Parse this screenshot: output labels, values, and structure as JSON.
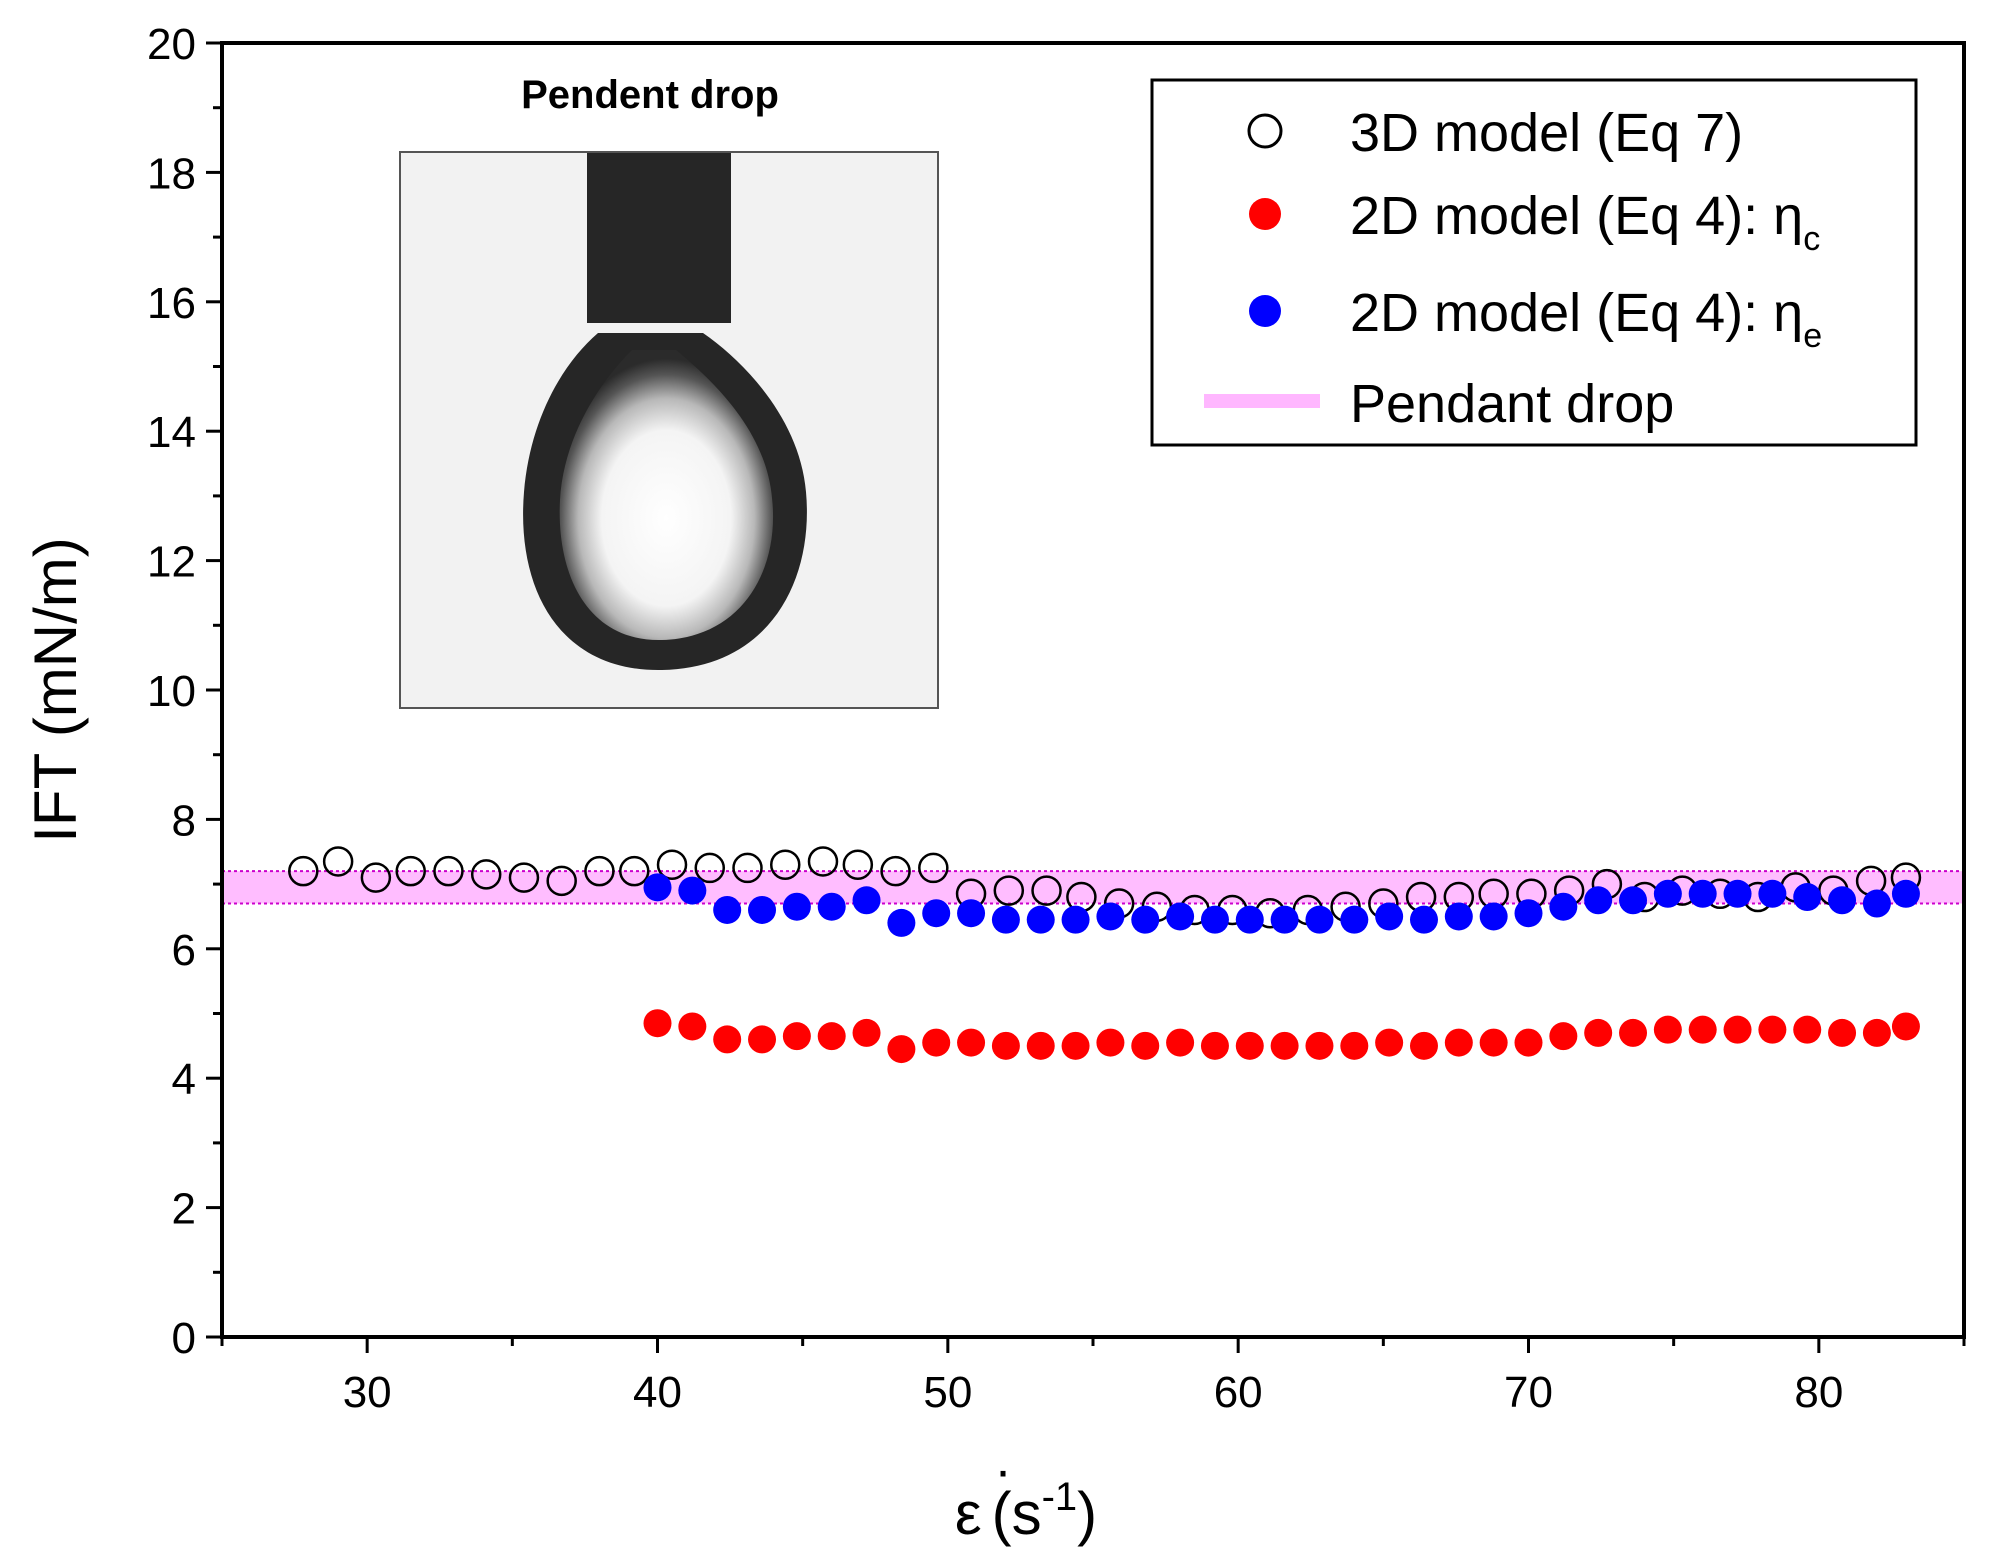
{
  "chart_data": {
    "type": "scatter",
    "title": "",
    "xlabel": "ε̇ (s⁻¹)",
    "xlabel_parts": {
      "symbol": "ε",
      "dot": "·",
      "open": "(s",
      "exp": "-1",
      "close": ")"
    },
    "ylabel": "IFT (mN/m)",
    "xlim": [
      25,
      85
    ],
    "ylim": [
      0,
      20
    ],
    "x_ticks": [
      30,
      40,
      50,
      60,
      70,
      80
    ],
    "y_ticks": [
      0,
      2,
      4,
      6,
      8,
      10,
      12,
      14,
      16,
      18,
      20
    ],
    "x_tick_labels": [
      "30",
      "40",
      "50",
      "60",
      "70",
      "80"
    ],
    "y_tick_labels": [
      "0",
      "2",
      "4",
      "6",
      "8",
      "10",
      "12",
      "14",
      "16",
      "18",
      "20"
    ],
    "grid": false,
    "legend_position": "top-right",
    "inset": {
      "title": "Pendent drop",
      "content": "photograph of a pendent drop hanging from a needle"
    },
    "band": {
      "name": "Pendant drop",
      "low": 6.7,
      "high": 7.2,
      "color": "#ff99ff"
    },
    "series": [
      {
        "name": "3D model (Eq 7)",
        "marker": "open-circle",
        "color": "#000000",
        "x": [
          27.8,
          29.0,
          30.3,
          31.5,
          32.8,
          34.1,
          35.4,
          36.7,
          38.0,
          39.2,
          40.5,
          41.8,
          43.1,
          44.4,
          45.7,
          46.9,
          48.2,
          49.5,
          50.8,
          52.1,
          53.4,
          54.6,
          55.9,
          57.2,
          58.5,
          59.8,
          61.1,
          62.4,
          63.7,
          65.0,
          66.3,
          67.6,
          68.8,
          70.1,
          71.4,
          72.7,
          74.0,
          75.3,
          76.6,
          77.9,
          79.2,
          80.5,
          81.8,
          83.0
        ],
        "y": [
          7.2,
          7.35,
          7.1,
          7.2,
          7.2,
          7.15,
          7.1,
          7.05,
          7.2,
          7.2,
          7.3,
          7.25,
          7.25,
          7.3,
          7.35,
          7.3,
          7.2,
          7.25,
          6.85,
          6.9,
          6.9,
          6.8,
          6.7,
          6.65,
          6.6,
          6.6,
          6.55,
          6.6,
          6.65,
          6.7,
          6.8,
          6.8,
          6.85,
          6.85,
          6.9,
          7.0,
          6.8,
          6.9,
          6.85,
          6.8,
          6.95,
          6.9,
          7.05,
          7.1
        ]
      },
      {
        "name": "2D model (Eq 4): ηc",
        "label_main": "2D model (Eq 4): η",
        "label_sub": "c",
        "marker": "filled-circle",
        "color": "#ff0000",
        "x": [
          40.0,
          41.2,
          42.4,
          43.6,
          44.8,
          46.0,
          47.2,
          48.4,
          49.6,
          50.8,
          52.0,
          53.2,
          54.4,
          55.6,
          56.8,
          58.0,
          59.2,
          60.4,
          61.6,
          62.8,
          64.0,
          65.2,
          66.4,
          67.6,
          68.8,
          70.0,
          71.2,
          72.4,
          73.6,
          74.8,
          76.0,
          77.2,
          78.4,
          79.6,
          80.8,
          82.0,
          83.0
        ],
        "y": [
          4.85,
          4.8,
          4.6,
          4.6,
          4.65,
          4.65,
          4.7,
          4.45,
          4.55,
          4.55,
          4.5,
          4.5,
          4.5,
          4.55,
          4.5,
          4.55,
          4.5,
          4.5,
          4.5,
          4.5,
          4.5,
          4.55,
          4.5,
          4.55,
          4.55,
          4.55,
          4.65,
          4.7,
          4.7,
          4.75,
          4.75,
          4.75,
          4.75,
          4.75,
          4.7,
          4.7,
          4.8
        ]
      },
      {
        "name": "2D model (Eq 4): ηe",
        "label_main": "2D model (Eq 4): η",
        "label_sub": "e",
        "marker": "filled-circle",
        "color": "#0000ff",
        "x": [
          40.0,
          41.2,
          42.4,
          43.6,
          44.8,
          46.0,
          47.2,
          48.4,
          49.6,
          50.8,
          52.0,
          53.2,
          54.4,
          55.6,
          56.8,
          58.0,
          59.2,
          60.4,
          61.6,
          62.8,
          64.0,
          65.2,
          66.4,
          67.6,
          68.8,
          70.0,
          71.2,
          72.4,
          73.6,
          74.8,
          76.0,
          77.2,
          78.4,
          79.6,
          80.8,
          82.0,
          83.0
        ],
        "y": [
          6.95,
          6.9,
          6.6,
          6.6,
          6.65,
          6.65,
          6.75,
          6.4,
          6.55,
          6.55,
          6.45,
          6.45,
          6.45,
          6.5,
          6.45,
          6.5,
          6.45,
          6.45,
          6.45,
          6.45,
          6.45,
          6.5,
          6.45,
          6.5,
          6.5,
          6.55,
          6.65,
          6.75,
          6.75,
          6.85,
          6.85,
          6.85,
          6.85,
          6.8,
          6.75,
          6.7,
          6.85
        ]
      }
    ]
  }
}
